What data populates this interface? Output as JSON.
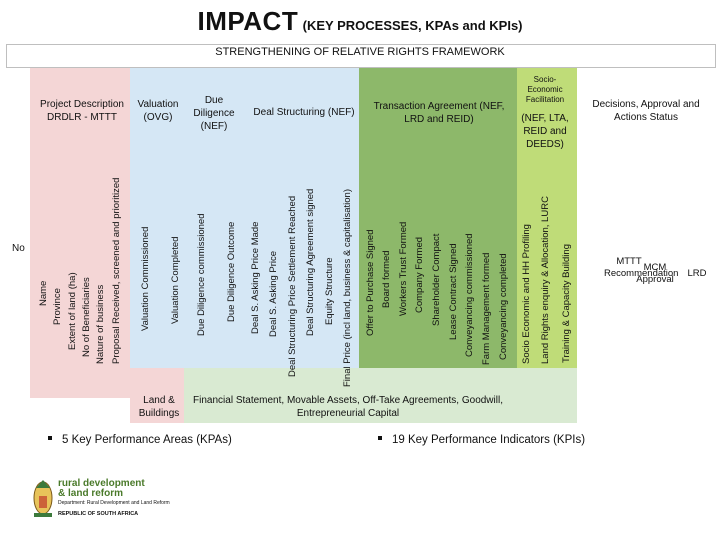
{
  "title": {
    "main": "IMPACT",
    "sub": "(KEY PROCESSES, KPAs and KPIs)"
  },
  "framework_title": "STRENGTHENING OF RELATIVE RIGHTS FRAMEWORK",
  "colors": {
    "pink": "#f4d6d6",
    "light_blue": "#d5e7f5",
    "light_green": "#d9ead2",
    "green": "#8db86a",
    "lime": "#bfdc78"
  },
  "side_label": "No",
  "sections": {
    "project": {
      "header": "Project Description DRDLR - MTTT",
      "columns": [
        "Name",
        "Province",
        "Extent of land (ha)",
        "No of Beneficiaries",
        "Nature of business",
        "Proposal Received, screened and prioritized"
      ]
    },
    "valuation": {
      "header": "Valuation (OVG)",
      "columns": [
        "Valuation Commissioned",
        "Valuation Completed"
      ],
      "footer": "Land & Buildings"
    },
    "due_diligence": {
      "header": "Due Diligence (NEF)",
      "columns": [
        "Due Diligence commissioned",
        "Due Diligence Outcome"
      ]
    },
    "deal_structuring": {
      "header": "Deal Structuring (NEF)",
      "columns": [
        "Deal S. Asking Price Made",
        "Deal S. Asking Price",
        "Deal Structuring Price Settlement Reached",
        "Deal Structuring Agreement signed",
        "Equity Structure",
        "Final Price (incl land, business & capitalisation)"
      ]
    },
    "transaction": {
      "header": "Transaction Agreement (NEF, LRD and REID)",
      "columns": [
        "Offer to Purchase Signed",
        "Board formed",
        "Workers Trust Formed",
        "Company Formed",
        "Shareholder Compact",
        "Lease Contract Signed",
        "Conveyancing commissioned",
        "Farm Management formed",
        "Conveyancing completed"
      ]
    },
    "socio": {
      "header_top": "Socio-Economic Facilitation",
      "header_bottom": "(NEF, LTA, REID and DEEDS)",
      "columns": [
        "Socio Economic and HH Profiling",
        "Land Rights enquiry & Allocation, LURC",
        "Training & Capacity Building"
      ]
    },
    "decisions": {
      "header": "Decisions, Approval and Actions Status",
      "columns": [
        "MTTT Recommendation",
        "MCM Approval",
        "LRD"
      ]
    }
  },
  "footer_financial": "Financial Statement, Movable Assets, Off-Take Agreements, Goodwill, Entrepreneurial Capital",
  "kpas": "5 Key Performance Areas (KPAs)",
  "kpis": "19 Key Performance Indicators (KPIs)",
  "logo": {
    "line1": "rural development",
    "line2": "& land reform",
    "line3": "Department: Rural Development and Land Reform",
    "line4": "REPUBLIC OF SOUTH AFRICA"
  }
}
